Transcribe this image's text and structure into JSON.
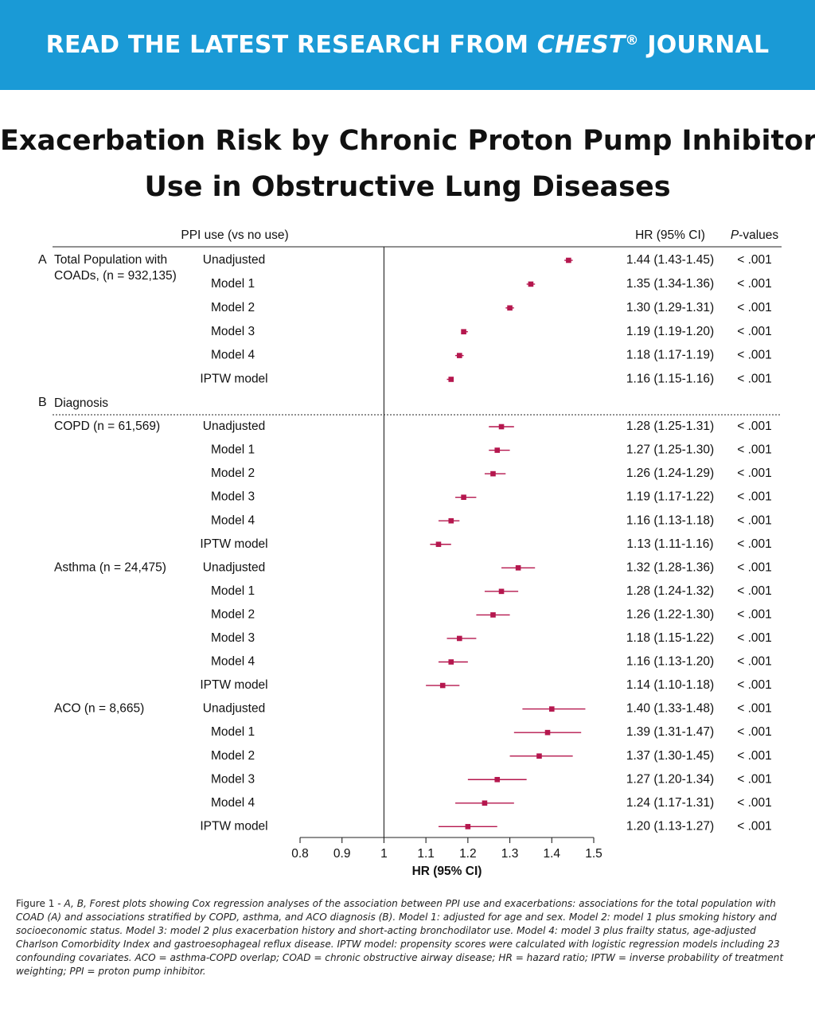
{
  "banner": {
    "prefix": "READ THE LATEST RESEARCH FROM ",
    "journal": "CHEST",
    "registered": "®",
    "suffix": " JOURNAL",
    "background": "#1a9ad6"
  },
  "title": {
    "line1": "Exacerbation Risk by Chronic Proton Pump Inhibitor",
    "line2": "Use in Obstructive Lung Diseases"
  },
  "chart_data": {
    "type": "forest",
    "header": {
      "comparison": "PPI use (vs no use)",
      "estimate": "HR (95% CI)",
      "pvalue_italic": "P",
      "pvalue_rest": "-values"
    },
    "xlabel": "HR (95% CI)",
    "xlim": [
      0.8,
      1.5
    ],
    "xticks": [
      0.8,
      0.9,
      1,
      1.1,
      1.2,
      1.3,
      1.4,
      1.5
    ],
    "reference_line": 1,
    "marker_color": "#b5174e",
    "panels": [
      {
        "letter": "A",
        "groups": [
          {
            "label_lines": [
              "Total Population with",
              "COADs, (n = 932,135)"
            ],
            "rows": [
              {
                "model": "Unadjusted",
                "hr": 1.44,
                "lo": 1.43,
                "hi": 1.45,
                "ci_text": "1.44 (1.43-1.45)",
                "p": "< .001"
              },
              {
                "model": "Model 1",
                "hr": 1.35,
                "lo": 1.34,
                "hi": 1.36,
                "ci_text": "1.35 (1.34-1.36)",
                "p": "< .001"
              },
              {
                "model": "Model 2",
                "hr": 1.3,
                "lo": 1.29,
                "hi": 1.31,
                "ci_text": "1.30 (1.29-1.31)",
                "p": "< .001"
              },
              {
                "model": "Model 3",
                "hr": 1.19,
                "lo": 1.19,
                "hi": 1.2,
                "ci_text": "1.19 (1.19-1.20)",
                "p": "< .001"
              },
              {
                "model": "Model 4",
                "hr": 1.18,
                "lo": 1.17,
                "hi": 1.19,
                "ci_text": "1.18 (1.17-1.19)",
                "p": "< .001"
              },
              {
                "model": "IPTW model",
                "hr": 1.16,
                "lo": 1.15,
                "hi": 1.16,
                "ci_text": "1.16 (1.15-1.16)",
                "p": "< .001"
              }
            ]
          }
        ]
      },
      {
        "letter": "B",
        "heading": "Diagnosis",
        "groups": [
          {
            "label_lines": [
              "COPD (n = 61,569)"
            ],
            "rows": [
              {
                "model": "Unadjusted",
                "hr": 1.28,
                "lo": 1.25,
                "hi": 1.31,
                "ci_text": "1.28 (1.25-1.31)",
                "p": "< .001"
              },
              {
                "model": "Model 1",
                "hr": 1.27,
                "lo": 1.25,
                "hi": 1.3,
                "ci_text": "1.27 (1.25-1.30)",
                "p": "< .001"
              },
              {
                "model": "Model 2",
                "hr": 1.26,
                "lo": 1.24,
                "hi": 1.29,
                "ci_text": "1.26 (1.24-1.29)",
                "p": "< .001"
              },
              {
                "model": "Model 3",
                "hr": 1.19,
                "lo": 1.17,
                "hi": 1.22,
                "ci_text": "1.19 (1.17-1.22)",
                "p": "< .001"
              },
              {
                "model": "Model 4",
                "hr": 1.16,
                "lo": 1.13,
                "hi": 1.18,
                "ci_text": "1.16 (1.13-1.18)",
                "p": "< .001"
              },
              {
                "model": "IPTW model",
                "hr": 1.13,
                "lo": 1.11,
                "hi": 1.16,
                "ci_text": "1.13 (1.11-1.16)",
                "p": "< .001"
              }
            ]
          },
          {
            "label_lines": [
              "Asthma (n = 24,475)"
            ],
            "rows": [
              {
                "model": "Unadjusted",
                "hr": 1.32,
                "lo": 1.28,
                "hi": 1.36,
                "ci_text": "1.32 (1.28-1.36)",
                "p": "< .001"
              },
              {
                "model": "Model 1",
                "hr": 1.28,
                "lo": 1.24,
                "hi": 1.32,
                "ci_text": "1.28 (1.24-1.32)",
                "p": "< .001"
              },
              {
                "model": "Model 2",
                "hr": 1.26,
                "lo": 1.22,
                "hi": 1.3,
                "ci_text": "1.26 (1.22-1.30)",
                "p": "< .001"
              },
              {
                "model": "Model 3",
                "hr": 1.18,
                "lo": 1.15,
                "hi": 1.22,
                "ci_text": "1.18 (1.15-1.22)",
                "p": "< .001"
              },
              {
                "model": "Model 4",
                "hr": 1.16,
                "lo": 1.13,
                "hi": 1.2,
                "ci_text": "1.16 (1.13-1.20)",
                "p": "< .001"
              },
              {
                "model": "IPTW model",
                "hr": 1.14,
                "lo": 1.1,
                "hi": 1.18,
                "ci_text": "1.14 (1.10-1.18)",
                "p": "< .001"
              }
            ]
          },
          {
            "label_lines": [
              "ACO (n = 8,665)"
            ],
            "rows": [
              {
                "model": "Unadjusted",
                "hr": 1.4,
                "lo": 1.33,
                "hi": 1.48,
                "ci_text": "1.40 (1.33-1.48)",
                "p": "< .001"
              },
              {
                "model": "Model 1",
                "hr": 1.39,
                "lo": 1.31,
                "hi": 1.47,
                "ci_text": "1.39 (1.31-1.47)",
                "p": "< .001"
              },
              {
                "model": "Model 2",
                "hr": 1.37,
                "lo": 1.3,
                "hi": 1.45,
                "ci_text": "1.37 (1.30-1.45)",
                "p": "< .001"
              },
              {
                "model": "Model 3",
                "hr": 1.27,
                "lo": 1.2,
                "hi": 1.34,
                "ci_text": "1.27 (1.20-1.34)",
                "p": "< .001"
              },
              {
                "model": "Model 4",
                "hr": 1.24,
                "lo": 1.17,
                "hi": 1.31,
                "ci_text": "1.24 (1.17-1.31)",
                "p": "< .001"
              },
              {
                "model": "IPTW model",
                "hr": 1.2,
                "lo": 1.13,
                "hi": 1.27,
                "ci_text": "1.20 (1.13-1.27)",
                "p": "< .001"
              }
            ]
          }
        ]
      }
    ]
  },
  "caption": {
    "lead": "Figure 1 - ",
    "body": "A, B, Forest plots showing Cox regression analyses of the association between PPI use and exacerbations: associations for the total population with COAD (A) and associations stratified by COPD, asthma, and ACO diagnosis (B). Model 1: adjusted for age and sex. Model 2: model 1 plus smoking history and socioeconomic status. Model 3: model 2 plus exacerbation history and short-acting bronchodilator use. Model 4: model 3 plus frailty status, age-adjusted Charlson Comorbidity Index and gastroesophageal reflux disease. IPTW model: propensity scores were calculated with logistic regression models including 23 confounding covariates. ACO = asthma-COPD overlap; COAD = chronic obstructive airway disease; HR = hazard ratio; IPTW = inverse probability of treatment weighting; PPI = proton pump inhibitor."
  }
}
